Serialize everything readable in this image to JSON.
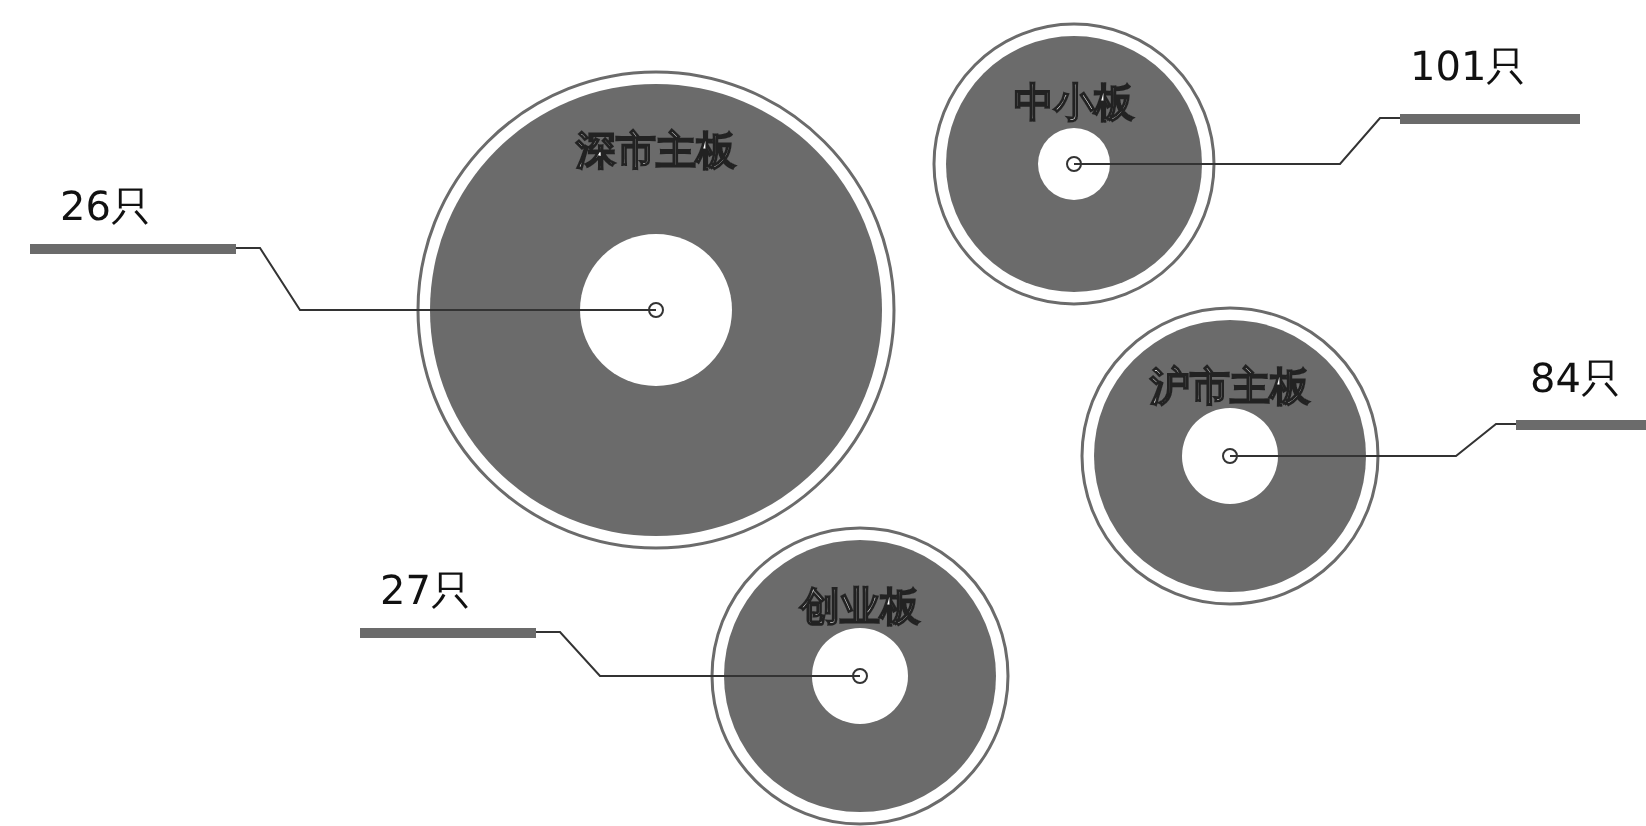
{
  "chart_data": {
    "type": "other",
    "categories": [
      "深市主板",
      "中小板",
      "沪市主板",
      "创业板"
    ],
    "values": [
      26,
      101,
      84,
      27
    ],
    "value_labels": [
      "26只",
      "101只",
      "84只",
      "27只"
    ],
    "color": "#6b6b6b"
  }
}
